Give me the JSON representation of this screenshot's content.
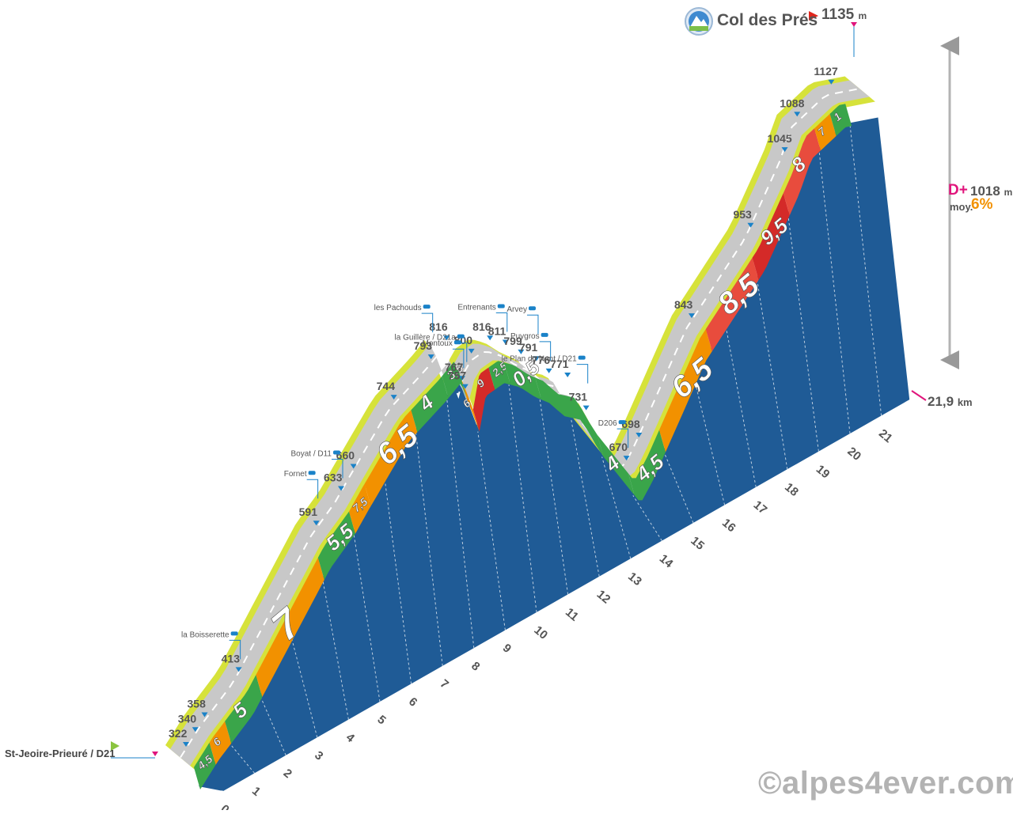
{
  "summit": {
    "name": "Col des Prés",
    "altitude": "1135",
    "unit": "m"
  },
  "start": {
    "name": "St-Jeoire-Prieuré / D21"
  },
  "summary": {
    "elevation_gain_label": "D+",
    "elevation_gain": "1018",
    "gain_unit": "m",
    "avg_label": "moy.",
    "avg_gradient": "6%",
    "distance": "21,9",
    "distance_unit": "km"
  },
  "copyright": "©alpes4ever.com",
  "colors": {
    "profile_side": "#1f5b96",
    "road_edge": "#d6e23a",
    "road_surface": "#c8c8c8",
    "g_easy": "#3aa54a",
    "g_medium": "#f29100",
    "g_hard": "#e84c3d",
    "g_very_hard": "#d42a28",
    "accent_pink": "#e0157c",
    "marker_blue": "#1a82c8"
  },
  "chart_data": {
    "type": "area",
    "title": "Col des Prés",
    "x_unit": "km",
    "y_unit": "m",
    "xlim": [
      0,
      21.9
    ],
    "km_ticks": [
      "0",
      "1",
      "2",
      "3",
      "4",
      "5",
      "6",
      "7",
      "8",
      "9",
      "10",
      "11",
      "12",
      "13",
      "14",
      "15",
      "16",
      "17",
      "18",
      "19",
      "20",
      "21"
    ],
    "gradient_segments": [
      {
        "from": 0.0,
        "to": 0.5,
        "label": "4,5",
        "grade": 4.5
      },
      {
        "from": 0.5,
        "to": 1.0,
        "label": "6",
        "grade": 6
      },
      {
        "from": 1.0,
        "to": 2.0,
        "label": "5",
        "grade": 5
      },
      {
        "from": 2.0,
        "to": 4.0,
        "label": "7",
        "grade": 7
      },
      {
        "from": 4.0,
        "to": 5.0,
        "label": "5,5",
        "grade": 5.5
      },
      {
        "from": 5.0,
        "to": 5.5,
        "label": "7,5",
        "grade": 7.5
      },
      {
        "from": 5.5,
        "to": 7.0,
        "label": "6,5",
        "grade": 6.5
      },
      {
        "from": 7.0,
        "to": 8.0,
        "label": "4",
        "grade": 4
      },
      {
        "from": 8.0,
        "to": 8.6,
        "label": "3,5",
        "grade": 3.5
      },
      {
        "from": 8.6,
        "to": 9.0,
        "label": "6",
        "grade": 6
      },
      {
        "from": 9.0,
        "to": 9.5,
        "label": "9",
        "grade": 9
      },
      {
        "from": 9.5,
        "to": 10.0,
        "label": "2,5",
        "grade": 2.5
      },
      {
        "from": 10.0,
        "to": 11.0,
        "label": "0,5",
        "grade": 0.5
      },
      {
        "from": 11.0,
        "to": 13.0,
        "label": "",
        "grade": 0
      },
      {
        "from": 13.0,
        "to": 14.0,
        "label": "4",
        "grade": 4
      },
      {
        "from": 14.0,
        "to": 15.0,
        "label": "4,5",
        "grade": 4.5
      },
      {
        "from": 15.0,
        "to": 16.5,
        "label": "6,5",
        "grade": 6.5
      },
      {
        "from": 16.5,
        "to": 18.0,
        "label": "8,5",
        "grade": 8.5
      },
      {
        "from": 18.0,
        "to": 19.0,
        "label": "9,5",
        "grade": 9.5
      },
      {
        "from": 19.0,
        "to": 20.0,
        "label": "8",
        "grade": 8
      },
      {
        "from": 20.0,
        "to": 20.5,
        "label": "7",
        "grade": 7
      },
      {
        "from": 20.5,
        "to": 21.0,
        "label": "1",
        "grade": 1
      }
    ],
    "altitude_points": [
      {
        "km": 0.0,
        "alt": 322,
        "label": "322"
      },
      {
        "km": 0.3,
        "alt": 340,
        "label": "340"
      },
      {
        "km": 0.6,
        "alt": 358,
        "label": "358"
      },
      {
        "km": 1.7,
        "alt": 413,
        "label": "413"
      },
      {
        "km": 4.2,
        "alt": 591,
        "label": "591"
      },
      {
        "km": 5.0,
        "alt": 633,
        "label": "633"
      },
      {
        "km": 5.4,
        "alt": 660,
        "label": "660"
      },
      {
        "km": 6.7,
        "alt": 744,
        "label": "744"
      },
      {
        "km": 7.9,
        "alt": 793,
        "label": "793"
      },
      {
        "km": 8.4,
        "alt": 816,
        "label": "816"
      },
      {
        "km": 8.9,
        "alt": 767,
        "label": "767"
      },
      {
        "km": 9.0,
        "alt": 757,
        "label": "757"
      },
      {
        "km": 9.2,
        "alt": 800,
        "label": "800"
      },
      {
        "km": 9.8,
        "alt": 816,
        "label": "816"
      },
      {
        "km": 10.3,
        "alt": 811,
        "label": "811"
      },
      {
        "km": 10.8,
        "alt": 799,
        "label": "799"
      },
      {
        "km": 11.3,
        "alt": 791,
        "label": "791"
      },
      {
        "km": 11.7,
        "alt": 776,
        "label": "776"
      },
      {
        "km": 12.3,
        "alt": 771,
        "label": "771"
      },
      {
        "km": 12.9,
        "alt": 731,
        "label": "731"
      },
      {
        "km": 14.2,
        "alt": 670,
        "label": "670"
      },
      {
        "km": 14.6,
        "alt": 698,
        "label": "698"
      },
      {
        "km": 16.3,
        "alt": 843,
        "label": "843"
      },
      {
        "km": 18.2,
        "alt": 953,
        "label": "953"
      },
      {
        "km": 19.3,
        "alt": 1045,
        "label": "1045"
      },
      {
        "km": 19.7,
        "alt": 1088,
        "label": "1088"
      },
      {
        "km": 20.8,
        "alt": 1127,
        "label": "1127"
      },
      {
        "km": 21.9,
        "alt": 1135,
        "label": "1135"
      }
    ],
    "places": [
      {
        "name": "la Boisserette",
        "km": 1.7
      },
      {
        "name": "Fornet",
        "km": 4.2
      },
      {
        "name": "Boyat / D11",
        "km": 5.0
      },
      {
        "name": "les Pachouds",
        "km": 7.9
      },
      {
        "name": "Montoux",
        "km": 8.9
      },
      {
        "name": "la Guillère / D21a",
        "km": 9.0
      },
      {
        "name": "Entrenants",
        "km": 10.3
      },
      {
        "name": "Arvey",
        "km": 11.3
      },
      {
        "name": "Puygros",
        "km": 11.7
      },
      {
        "name": "le Plan du Nant / D21",
        "km": 12.9
      },
      {
        "name": "D206",
        "km": 14.2
      }
    ]
  }
}
